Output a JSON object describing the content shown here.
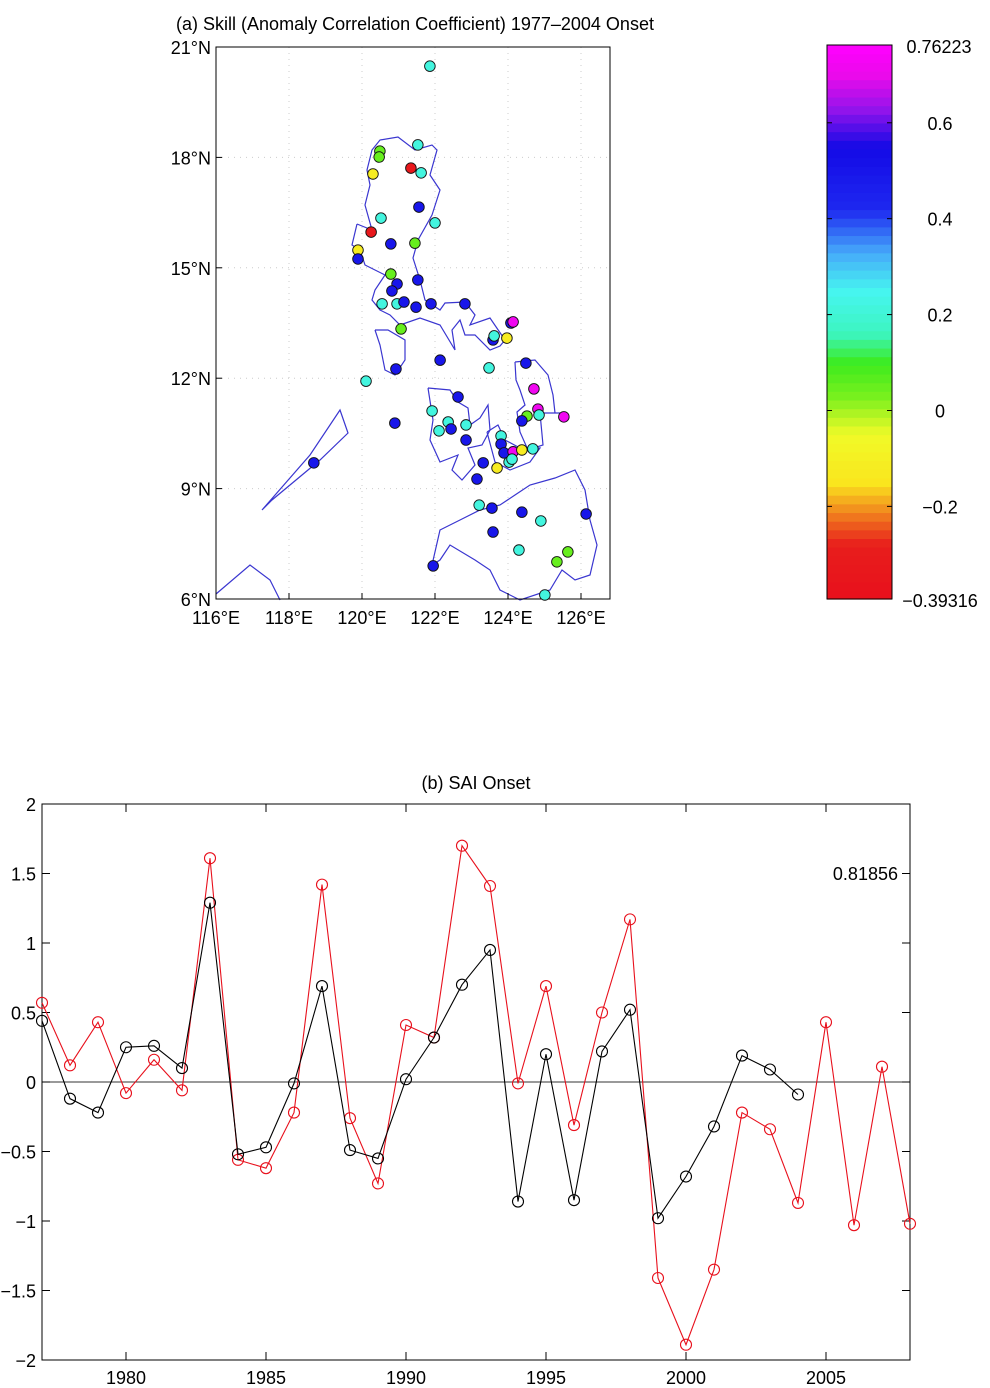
{
  "chart_data": [
    {
      "type": "scatter",
      "title": "(a) Skill (Anomaly Correlation Coefficient) 1977–2004 Onset",
      "xlabel": "",
      "ylabel": "",
      "xlim": [
        116,
        126.8
      ],
      "ylim": [
        6,
        21
      ],
      "x_ticks": [
        "116°E",
        "118°E",
        "120°E",
        "122°E",
        "124°E",
        "126°E"
      ],
      "x_tick_values": [
        116,
        118,
        120,
        122,
        124,
        126
      ],
      "y_ticks": [
        "6°N",
        "9°N",
        "12°N",
        "15°N",
        "18°N",
        "21°N"
      ],
      "y_tick_values": [
        6,
        9,
        12,
        15,
        18,
        21
      ],
      "grid": true,
      "colorbar": {
        "min": -0.39316,
        "max": 0.76223,
        "min_label": "−0.39316",
        "max_label": "0.76223",
        "ticks": [
          {
            "v": 0.6,
            "label": "0.6"
          },
          {
            "v": 0.4,
            "label": "0.4"
          },
          {
            "v": 0.2,
            "label": "0.2"
          },
          {
            "v": 0,
            "label": "0"
          },
          {
            "v": -0.2,
            "label": "−0.2"
          }
        ]
      },
      "points": [
        [
          121.86,
          20.48,
          0.22
        ],
        [
          121.53,
          18.34,
          0.22
        ],
        [
          120.49,
          18.17,
          0.05
        ],
        [
          120.47,
          18.01,
          0.05
        ],
        [
          121.34,
          17.71,
          -0.33
        ],
        [
          121.62,
          17.58,
          0.22
        ],
        [
          120.3,
          17.55,
          -0.12
        ],
        [
          121.56,
          16.65,
          0.5
        ],
        [
          120.52,
          16.35,
          0.22
        ],
        [
          122.0,
          16.22,
          0.22
        ],
        [
          120.25,
          15.97,
          -0.33
        ],
        [
          120.79,
          15.65,
          0.5
        ],
        [
          121.45,
          15.67,
          0.05
        ],
        [
          119.89,
          15.48,
          -0.12
        ],
        [
          119.89,
          15.24,
          0.5
        ],
        [
          120.79,
          14.83,
          0.05
        ],
        [
          120.96,
          14.56,
          0.5
        ],
        [
          120.82,
          14.37,
          0.5
        ],
        [
          121.53,
          14.67,
          0.5
        ],
        [
          120.55,
          14.02,
          0.22
        ],
        [
          120.96,
          14.02,
          0.22
        ],
        [
          121.15,
          14.07,
          0.5
        ],
        [
          121.48,
          13.93,
          0.5
        ],
        [
          121.89,
          14.02,
          0.5
        ],
        [
          122.82,
          14.02,
          0.5
        ],
        [
          121.07,
          13.34,
          0.05
        ],
        [
          124.08,
          13.5,
          0.5
        ],
        [
          124.14,
          13.53,
          0.72
        ],
        [
          123.59,
          13.04,
          0.5
        ],
        [
          123.62,
          13.15,
          0.22
        ],
        [
          123.97,
          13.09,
          -0.12
        ],
        [
          122.14,
          12.49,
          0.5
        ],
        [
          123.48,
          12.28,
          0.22
        ],
        [
          124.49,
          12.41,
          0.5
        ],
        [
          120.93,
          12.25,
          0.5
        ],
        [
          120.11,
          11.92,
          0.22
        ],
        [
          124.71,
          11.71,
          0.72
        ],
        [
          122.63,
          11.49,
          0.5
        ],
        [
          124.82,
          11.16,
          0.72
        ],
        [
          124.52,
          10.97,
          0.05
        ],
        [
          124.85,
          11.0,
          0.22
        ],
        [
          125.53,
          10.95,
          0.72
        ],
        [
          124.38,
          10.84,
          0.5
        ],
        [
          120.9,
          10.78,
          0.5
        ],
        [
          121.92,
          11.11,
          0.22
        ],
        [
          122.36,
          10.81,
          0.22
        ],
        [
          122.44,
          10.62,
          0.5
        ],
        [
          122.11,
          10.57,
          0.22
        ],
        [
          122.85,
          10.73,
          0.22
        ],
        [
          122.85,
          10.32,
          0.5
        ],
        [
          123.81,
          10.43,
          0.22
        ],
        [
          123.81,
          10.21,
          0.5
        ],
        [
          123.89,
          9.97,
          0.5
        ],
        [
          124.14,
          10.0,
          0.72
        ],
        [
          124.38,
          10.05,
          -0.12
        ],
        [
          124.68,
          10.08,
          0.22
        ],
        [
          124.03,
          9.72,
          0.22
        ],
        [
          124.11,
          9.8,
          0.22
        ],
        [
          123.32,
          9.7,
          0.5
        ],
        [
          123.7,
          9.56,
          -0.12
        ],
        [
          123.15,
          9.26,
          0.5
        ],
        [
          123.21,
          8.55,
          0.22
        ],
        [
          123.56,
          8.47,
          0.5
        ],
        [
          124.38,
          8.36,
          0.5
        ],
        [
          126.14,
          8.31,
          0.5
        ],
        [
          124.9,
          8.12,
          0.22
        ],
        [
          123.59,
          7.82,
          0.5
        ],
        [
          124.3,
          7.33,
          0.22
        ],
        [
          121.95,
          6.9,
          0.5
        ],
        [
          125.64,
          7.28,
          0.05
        ],
        [
          125.34,
          7.01,
          0.05
        ],
        [
          125.01,
          6.11,
          0.22
        ],
        [
          118.68,
          9.7,
          0.5
        ]
      ]
    },
    {
      "type": "line",
      "title": "(b) SAI Onset",
      "xlabel": "",
      "ylabel": "",
      "xlim": [
        1977,
        2008
      ],
      "ylim": [
        -2,
        2
      ],
      "x_ticks": [
        "1980",
        "1985",
        "1990",
        "1995",
        "2000",
        "2005"
      ],
      "x_tick_values": [
        1980,
        1985,
        1990,
        1995,
        2000,
        2005
      ],
      "y_ticks": [
        "2",
        "1.5",
        "1",
        "0.5",
        "0",
        "−0.5",
        "−1",
        "−1.5",
        "−2"
      ],
      "y_tick_values": [
        2,
        1.5,
        1,
        0.5,
        0,
        -0.5,
        -1,
        -1.5,
        -2
      ],
      "annotation": "0.81856",
      "annotation_y": 1.5,
      "grid": false,
      "series": [
        {
          "name": "black",
          "color": "#000000",
          "x": [
            1977,
            1978,
            1979,
            1980,
            1981,
            1982,
            1983,
            1984,
            1985,
            1986,
            1987,
            1988,
            1989,
            1990,
            1991,
            1992,
            1993,
            1994,
            1995,
            1996,
            1997,
            1998,
            1999,
            2000,
            2001,
            2002,
            2003,
            2004
          ],
          "values": [
            0.44,
            -0.12,
            -0.22,
            0.25,
            0.26,
            0.1,
            1.29,
            -0.52,
            -0.47,
            -0.01,
            0.69,
            -0.49,
            -0.55,
            0.02,
            0.32,
            0.7,
            0.95,
            -0.86,
            0.2,
            -0.85,
            0.22,
            0.52,
            -0.98,
            -0.68,
            -0.32,
            0.19,
            0.09,
            -0.09
          ]
        },
        {
          "name": "red",
          "color": "#e8101c",
          "x": [
            1977,
            1978,
            1979,
            1980,
            1981,
            1982,
            1983,
            1984,
            1985,
            1986,
            1987,
            1988,
            1989,
            1990,
            1991,
            1992,
            1993,
            1994,
            1995,
            1996,
            1997,
            1998,
            1999,
            2000,
            2001,
            2002,
            2003,
            2004,
            2005,
            2006,
            2007,
            2008
          ],
          "values": [
            0.57,
            0.12,
            0.43,
            -0.08,
            0.16,
            -0.06,
            1.61,
            -0.56,
            -0.62,
            -0.22,
            1.42,
            -0.26,
            -0.73,
            0.41,
            0.32,
            1.7,
            1.41,
            -0.01,
            0.69,
            -0.31,
            0.5,
            1.17,
            -1.41,
            -1.89,
            -1.35,
            -0.22,
            -0.34,
            -0.87,
            0.43,
            -1.03,
            0.11,
            -1.02
          ]
        }
      ]
    }
  ]
}
